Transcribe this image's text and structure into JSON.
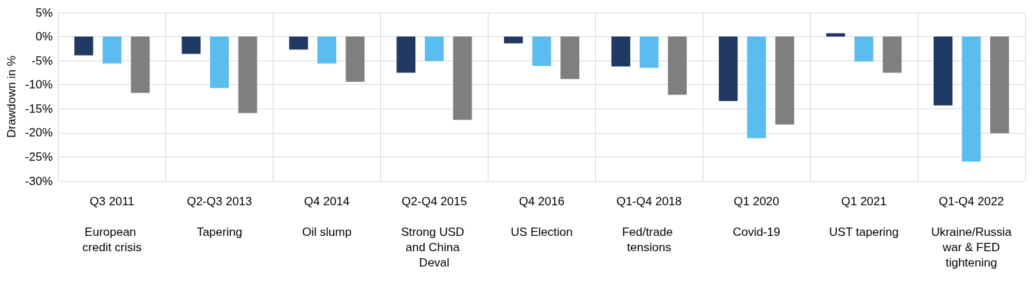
{
  "chart_data": {
    "type": "bar",
    "ylabel": "Drawdown in %",
    "categories": [
      "Q3 2011\nEuropean credit crisis",
      "Q2-Q3 2013\nTapering",
      "Q4 2014\nOil slump",
      "Q2-Q4 2015\nStrong USD and China Deval",
      "Q4 2016\nUS Election",
      "Q1-Q4 2018\nFed/trade tensions",
      "Q1 2020\nCovid-19",
      "Q1 2021\nUST tapering",
      "Q1-Q4 2022\nUkraine/Russia war & FED tightening"
    ],
    "series": [
      {
        "color": "#1f3864",
        "values": [
          -3.9,
          -3.6,
          -2.7,
          -7.5,
          -1.4,
          -6.2,
          -13.4,
          0.7,
          -14.3
        ]
      },
      {
        "color": "#5bbcef",
        "values": [
          -5.6,
          -10.7,
          -5.6,
          -5.1,
          -6.1,
          -6.5,
          -21.1,
          -5.2,
          -26.0
        ]
      },
      {
        "color": "#7f7f7f",
        "values": [
          -11.7,
          -15.9,
          -9.4,
          -17.3,
          -8.8,
          -12.1,
          -18.3,
          -7.5,
          -20.1
        ]
      }
    ],
    "ylim": [
      -30,
      5
    ],
    "yticks": [
      {
        "value": 5,
        "label": "5%"
      },
      {
        "value": 0,
        "label": "0%"
      },
      {
        "value": -5,
        "label": "-5%"
      },
      {
        "value": -10,
        "label": "-10%"
      },
      {
        "value": -15,
        "label": "-15%"
      },
      {
        "value": -20,
        "label": "-20%"
      },
      {
        "value": -25,
        "label": "-25%"
      },
      {
        "value": -30,
        "label": "-30%"
      }
    ],
    "grid": true
  }
}
